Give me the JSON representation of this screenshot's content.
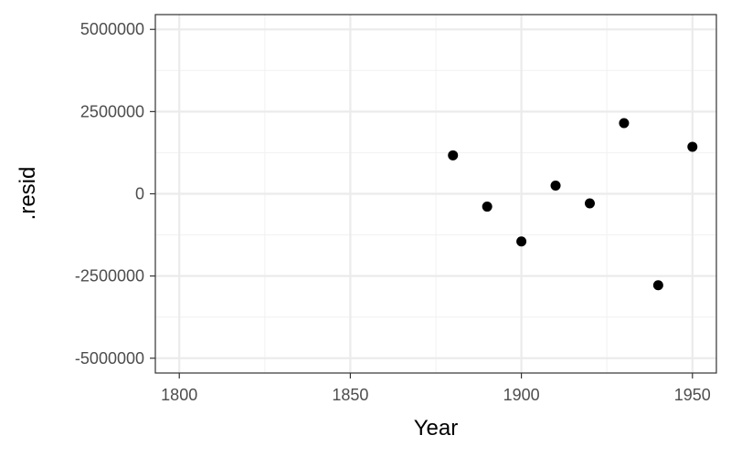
{
  "chart_data": {
    "type": "scatter",
    "title": "",
    "xlabel": "Year",
    "ylabel": ".resid",
    "xlim": [
      1793,
      1957
    ],
    "ylim": [
      -5450000,
      5450000
    ],
    "x_ticks": [
      1800,
      1850,
      1900,
      1950
    ],
    "x_tick_labels": [
      "1800",
      "1850",
      "1900",
      "1950"
    ],
    "y_ticks": [
      5000000,
      2500000,
      0,
      -2500000,
      -5000000
    ],
    "y_tick_labels": [
      "5000000",
      "2500000",
      "0",
      "-2500000",
      "-5000000"
    ],
    "grid": true,
    "point_color": "#000000",
    "points": [
      {
        "x": 1880,
        "y": 1170000
      },
      {
        "x": 1890,
        "y": -390000
      },
      {
        "x": 1900,
        "y": -1450000
      },
      {
        "x": 1910,
        "y": 250000
      },
      {
        "x": 1920,
        "y": -290000
      },
      {
        "x": 1930,
        "y": 2150000
      },
      {
        "x": 1940,
        "y": -2780000
      },
      {
        "x": 1950,
        "y": 1430000
      }
    ]
  }
}
